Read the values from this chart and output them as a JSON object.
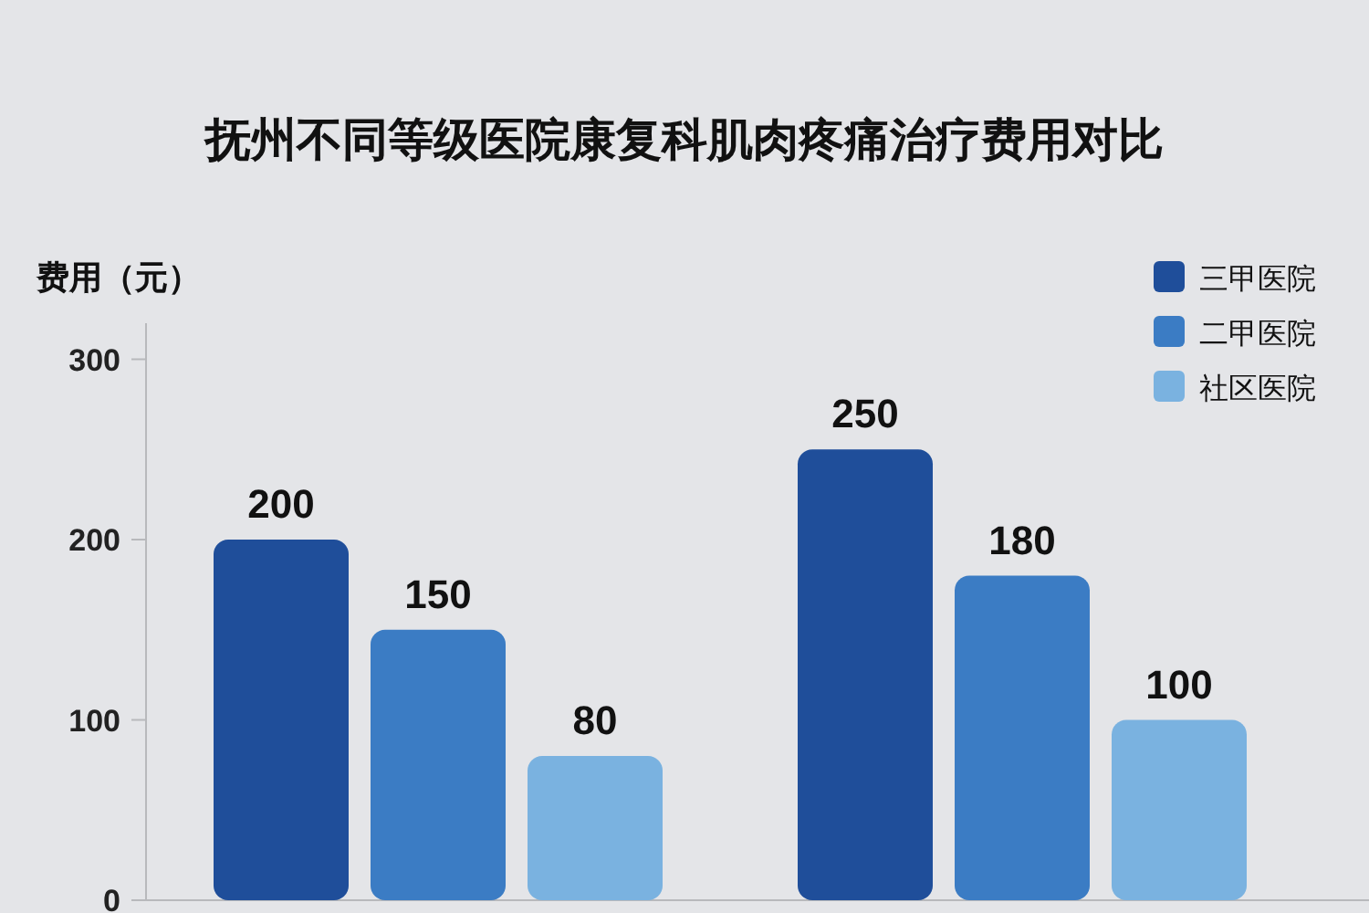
{
  "chart_data": {
    "type": "bar",
    "title": "抚州不同等级医院康复科肌肉疼痛治疗费用对比",
    "ylabel": "费用（元）",
    "categories": [
      null,
      null
    ],
    "series": [
      {
        "name": "三甲医院",
        "color": "#1f4e9a",
        "values": [
          200,
          250
        ]
      },
      {
        "name": "二甲医院",
        "color": "#3b7cc4",
        "values": [
          150,
          180
        ]
      },
      {
        "name": "社区医院",
        "color": "#7ab2e0",
        "values": [
          80,
          100
        ]
      }
    ],
    "ylim": [
      0,
      320
    ],
    "yticks": [
      0,
      100,
      200,
      300
    ],
    "data_labels": true,
    "legend": "top right",
    "grid": false
  }
}
